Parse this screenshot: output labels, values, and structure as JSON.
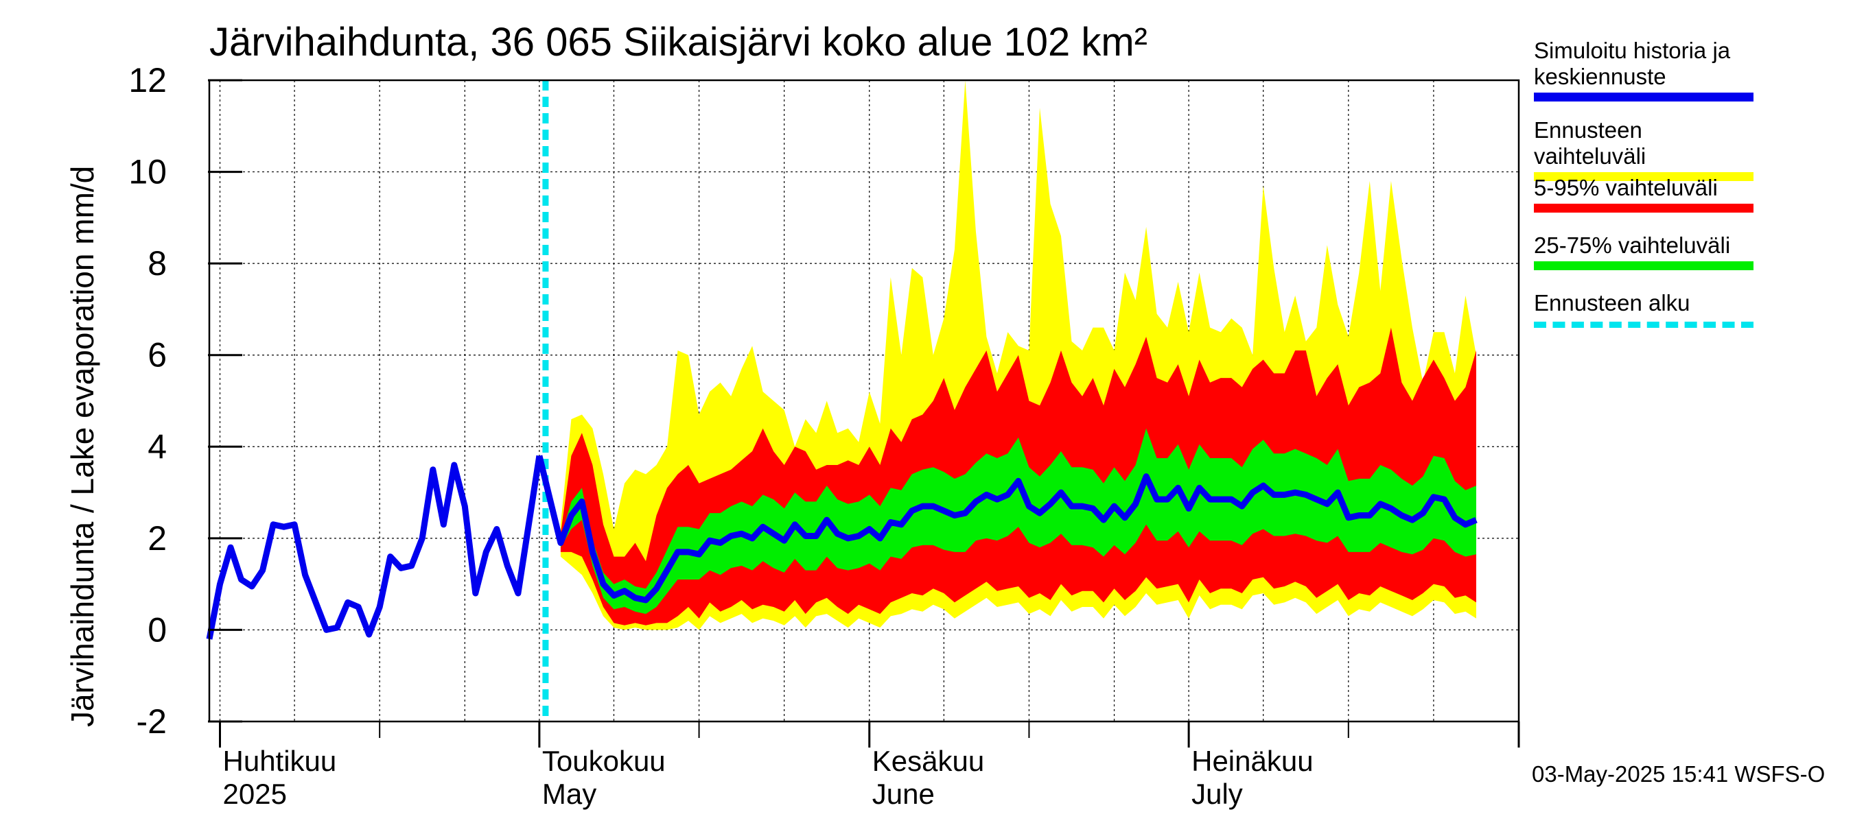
{
  "title": "Järvihaihdunta, 36 065 Siikaisjärvi koko alue 102 km²",
  "footer": "03-May-2025 15:41 WSFS-O",
  "legend": [
    {
      "label": "Simuloitu historia ja keskiennuste",
      "color": "#0000ee",
      "style": "solid"
    },
    {
      "label": "Ennusteen vaihteluväli",
      "color": "#ffff00",
      "style": "solid"
    },
    {
      "label": "5-95% vaihteluväli",
      "color": "#ff0000",
      "style": "solid"
    },
    {
      "label": "25-75% vaihteluväli",
      "color": "#00ee00",
      "style": "solid"
    },
    {
      "label": "Ennusteen alku",
      "color": "#00e5ee",
      "style": "dashed"
    }
  ],
  "chart_data": {
    "type": "area",
    "title": "Järvihaihdunta, 36 065 Siikaisjärvi koko alue 102 km²",
    "ylabel": "Järvihaihdunta / Lake evaporation   mm/d",
    "ylim": [
      -2,
      12
    ],
    "yticks": [
      -2,
      0,
      2,
      4,
      6,
      8,
      10,
      12
    ],
    "xlim": [
      "2025-03-31",
      "2025-08-01"
    ],
    "grid": true,
    "legend_position": "right",
    "month_labels": [
      {
        "line1": "Huhtikuu",
        "line2": "2025",
        "date": "2025-04-01"
      },
      {
        "line1": "Toukokuu",
        "line2": "May",
        "date": "2025-05-01"
      },
      {
        "line1": "Kesäkuu",
        "line2": "June",
        "date": "2025-06-01"
      },
      {
        "line1": "Heinäkuu",
        "line2": "July",
        "date": "2025-07-01"
      }
    ],
    "forecast_start": "2025-05-03",
    "history": {
      "name": "Simuloitu historia ja keskiennuste",
      "start": "2025-03-31",
      "values": [
        -0.2,
        1.0,
        1.8,
        1.1,
        0.95,
        1.3,
        2.3,
        2.25,
        2.3,
        1.2,
        0.6,
        0.0,
        0.05,
        0.6,
        0.5,
        -0.1,
        0.5,
        1.6,
        1.35,
        1.4,
        2.0,
        3.5,
        2.3,
        3.6,
        2.7,
        0.8,
        1.7,
        2.2,
        1.4,
        0.8,
        2.3,
        3.8
      ]
    },
    "forecast": {
      "start": "2025-05-03",
      "median": [
        1.9,
        2.5,
        2.8,
        1.7,
        1.0,
        0.75,
        0.85,
        0.7,
        0.65,
        0.9,
        1.3,
        1.7,
        1.7,
        1.65,
        1.95,
        1.9,
        2.05,
        2.1,
        2.0,
        2.25,
        2.1,
        1.95,
        2.3,
        2.05,
        2.05,
        2.4,
        2.1,
        2.0,
        2.05,
        2.2,
        2.0,
        2.35,
        2.3,
        2.6,
        2.7,
        2.7,
        2.6,
        2.5,
        2.55,
        2.8,
        2.95,
        2.85,
        2.95,
        3.25,
        2.7,
        2.55,
        2.75,
        3.0,
        2.7,
        2.7,
        2.65,
        2.4,
        2.7,
        2.45,
        2.75,
        3.35,
        2.85,
        2.85,
        3.1,
        2.65,
        3.1,
        2.85,
        2.85,
        2.85,
        2.7,
        3.0,
        3.15,
        2.95,
        2.95,
        3.0,
        2.95,
        2.85,
        2.75,
        3.0,
        2.45,
        2.5,
        2.5,
        2.75,
        2.65,
        2.5,
        2.4,
        2.55,
        2.9,
        2.85,
        2.45,
        2.3,
        2.4
      ],
      "p25": [
        1.8,
        2.2,
        2.4,
        1.4,
        0.7,
        0.45,
        0.5,
        0.4,
        0.35,
        0.5,
        0.8,
        1.1,
        1.1,
        1.1,
        1.3,
        1.2,
        1.35,
        1.4,
        1.3,
        1.5,
        1.35,
        1.25,
        1.55,
        1.3,
        1.3,
        1.6,
        1.35,
        1.3,
        1.35,
        1.45,
        1.3,
        1.6,
        1.55,
        1.8,
        1.85,
        1.85,
        1.75,
        1.7,
        1.7,
        1.95,
        2.0,
        1.95,
        2.05,
        2.25,
        1.9,
        1.8,
        1.9,
        2.1,
        1.85,
        1.85,
        1.8,
        1.6,
        1.85,
        1.65,
        1.9,
        2.3,
        1.95,
        1.95,
        2.15,
        1.8,
        2.15,
        1.95,
        1.95,
        1.95,
        1.85,
        2.1,
        2.2,
        2.05,
        2.05,
        2.1,
        2.05,
        1.95,
        1.9,
        2.05,
        1.7,
        1.7,
        1.7,
        1.9,
        1.8,
        1.7,
        1.65,
        1.75,
        2.0,
        1.95,
        1.7,
        1.6,
        1.65
      ],
      "p75": [
        2.0,
        2.8,
        3.1,
        1.95,
        1.25,
        1.0,
        1.1,
        0.95,
        0.9,
        1.25,
        1.75,
        2.25,
        2.25,
        2.2,
        2.55,
        2.55,
        2.7,
        2.8,
        2.7,
        2.95,
        2.85,
        2.65,
        3.0,
        2.8,
        2.8,
        3.15,
        2.85,
        2.75,
        2.8,
        2.95,
        2.7,
        3.1,
        3.05,
        3.4,
        3.5,
        3.55,
        3.45,
        3.3,
        3.4,
        3.65,
        3.85,
        3.75,
        3.85,
        4.2,
        3.55,
        3.35,
        3.6,
        3.9,
        3.55,
        3.55,
        3.5,
        3.2,
        3.55,
        3.25,
        3.6,
        4.4,
        3.75,
        3.75,
        4.05,
        3.5,
        4.05,
        3.75,
        3.75,
        3.75,
        3.55,
        3.95,
        4.15,
        3.85,
        3.85,
        3.95,
        3.85,
        3.75,
        3.6,
        3.95,
        3.25,
        3.3,
        3.3,
        3.6,
        3.5,
        3.3,
        3.15,
        3.35,
        3.8,
        3.75,
        3.25,
        3.05,
        3.15
      ],
      "p05": [
        1.7,
        1.7,
        1.6,
        1.1,
        0.5,
        0.15,
        0.1,
        0.15,
        0.1,
        0.15,
        0.15,
        0.3,
        0.5,
        0.25,
        0.6,
        0.4,
        0.5,
        0.65,
        0.45,
        0.55,
        0.5,
        0.4,
        0.65,
        0.35,
        0.6,
        0.7,
        0.5,
        0.35,
        0.55,
        0.45,
        0.35,
        0.6,
        0.7,
        0.8,
        0.75,
        0.9,
        0.8,
        0.6,
        0.75,
        0.9,
        1.05,
        0.85,
        0.9,
        0.95,
        0.7,
        0.8,
        0.65,
        1.0,
        0.75,
        0.85,
        0.85,
        0.6,
        0.9,
        0.65,
        0.85,
        1.15,
        0.9,
        0.95,
        1.0,
        0.6,
        1.1,
        0.8,
        0.9,
        0.9,
        0.8,
        1.1,
        1.15,
        0.9,
        0.95,
        1.05,
        0.95,
        0.7,
        0.85,
        1.0,
        0.65,
        0.8,
        0.75,
        0.95,
        0.85,
        0.75,
        0.65,
        0.8,
        1.0,
        0.95,
        0.7,
        0.75,
        0.6
      ],
      "p95": [
        2.1,
        3.8,
        4.3,
        3.6,
        2.3,
        1.6,
        1.6,
        1.9,
        1.5,
        2.5,
        3.1,
        3.4,
        3.6,
        3.2,
        3.3,
        3.4,
        3.5,
        3.7,
        3.9,
        4.4,
        3.9,
        3.6,
        4.0,
        3.9,
        3.5,
        3.6,
        3.6,
        3.7,
        3.6,
        4.0,
        3.6,
        4.4,
        4.1,
        4.6,
        4.7,
        5.0,
        5.5,
        4.8,
        5.3,
        5.7,
        6.1,
        5.2,
        5.6,
        6.0,
        5.0,
        4.9,
        5.4,
        6.1,
        5.4,
        5.1,
        5.5,
        4.9,
        5.7,
        5.3,
        5.8,
        6.4,
        5.5,
        5.4,
        5.8,
        5.1,
        5.9,
        5.4,
        5.5,
        5.5,
        5.3,
        5.7,
        5.9,
        5.6,
        5.6,
        6.1,
        6.1,
        5.1,
        5.5,
        5.8,
        4.9,
        5.3,
        5.4,
        5.6,
        6.6,
        5.4,
        5.0,
        5.5,
        5.9,
        5.5,
        5.0,
        5.3,
        6.1
      ],
      "min": [
        1.6,
        1.4,
        1.2,
        0.8,
        0.3,
        0.05,
        0.0,
        0.05,
        0.0,
        0.0,
        0.0,
        0.05,
        0.2,
        0.0,
        0.3,
        0.15,
        0.25,
        0.35,
        0.15,
        0.25,
        0.2,
        0.1,
        0.3,
        0.05,
        0.3,
        0.35,
        0.2,
        0.05,
        0.25,
        0.15,
        0.05,
        0.3,
        0.35,
        0.45,
        0.4,
        0.55,
        0.45,
        0.25,
        0.4,
        0.55,
        0.7,
        0.5,
        0.55,
        0.6,
        0.35,
        0.45,
        0.3,
        0.65,
        0.4,
        0.5,
        0.5,
        0.25,
        0.55,
        0.3,
        0.5,
        0.8,
        0.55,
        0.6,
        0.65,
        0.25,
        0.75,
        0.45,
        0.55,
        0.55,
        0.45,
        0.75,
        0.8,
        0.55,
        0.6,
        0.7,
        0.6,
        0.35,
        0.5,
        0.65,
        0.3,
        0.45,
        0.4,
        0.6,
        0.5,
        0.4,
        0.3,
        0.45,
        0.65,
        0.6,
        0.35,
        0.4,
        0.25
      ],
      "max": [
        2.3,
        4.6,
        4.7,
        4.4,
        3.4,
        2.2,
        3.2,
        3.5,
        3.4,
        3.6,
        4.0,
        6.1,
        6.0,
        4.7,
        5.2,
        5.4,
        5.1,
        5.7,
        6.2,
        5.2,
        5.0,
        4.8,
        4.0,
        4.6,
        4.3,
        5.0,
        4.3,
        4.4,
        4.1,
        5.2,
        4.5,
        7.7,
        6.0,
        7.9,
        7.7,
        6.0,
        6.8,
        8.3,
        12.0,
        8.7,
        6.4,
        5.6,
        6.5,
        6.2,
        6.1,
        11.4,
        9.3,
        8.6,
        6.3,
        6.1,
        6.6,
        6.6,
        6.1,
        7.8,
        7.2,
        8.8,
        6.9,
        6.6,
        7.6,
        6.5,
        7.8,
        6.6,
        6.5,
        6.8,
        6.6,
        6.0,
        9.7,
        7.9,
        6.5,
        7.3,
        6.3,
        6.6,
        8.4,
        7.1,
        6.4,
        7.8,
        9.8,
        7.4,
        9.8,
        8.1,
        6.6,
        5.4,
        6.5,
        6.5,
        5.6,
        7.3,
        6.0
      ]
    }
  }
}
